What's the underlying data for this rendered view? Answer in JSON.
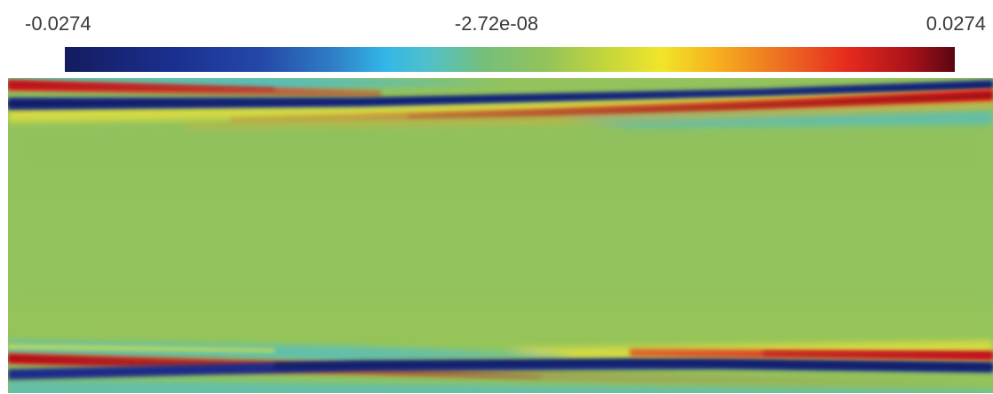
{
  "colorbar": {
    "min_label": "-0.0274",
    "mid_label": "-2.72e-08",
    "max_label": "0.0274",
    "min_value": -0.0274,
    "mid_value": -2.72e-08,
    "max_value": 0.0274,
    "colormap": [
      "#141c5e",
      "#2448a8",
      "#33b6e8",
      "#75bf7b",
      "#92c35a",
      "#f1e52a",
      "#ee7421",
      "#e62a1e",
      "#5a0610"
    ]
  },
  "field_plot": {
    "background_color": "#93c35c",
    "description_colors": {
      "positive_band": "#d8141a",
      "negative_band": "#1a2a8a",
      "transition_yellow": "#f2e62c",
      "transition_cyan": "#3bbbe6"
    }
  }
}
